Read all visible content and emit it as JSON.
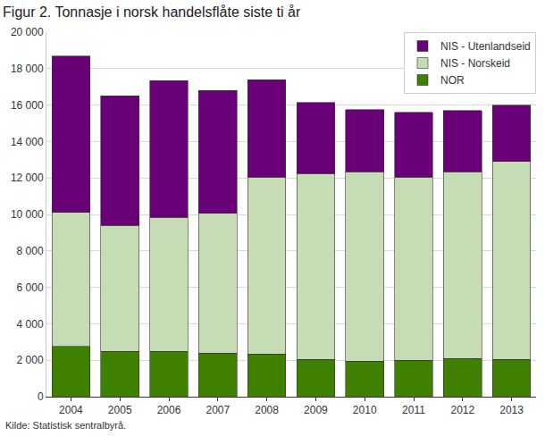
{
  "chart_data": {
    "type": "bar",
    "title": "Figur 2. Tonnasje i norsk handelsflåte siste ti år",
    "annotations": [
      "Kilde: Statistisk sentralbyrå."
    ],
    "categories": [
      "2004",
      "2005",
      "2006",
      "2007",
      "2008",
      "2009",
      "2010",
      "2011",
      "2012",
      "2013"
    ],
    "series": [
      {
        "name": "NOR",
        "color": "#3f8000",
        "values": [
          2750,
          2500,
          2500,
          2400,
          2350,
          2050,
          1950,
          2000,
          2100,
          2050
        ]
      },
      {
        "name": "NIS - Norskeid",
        "color": "#c6dcb4",
        "values": [
          7350,
          6900,
          7350,
          7650,
          9700,
          10200,
          10400,
          10050,
          10250,
          10850
        ]
      },
      {
        "name": "NIS - Utenlandseid",
        "color": "#6a0078",
        "values": [
          8600,
          7100,
          7500,
          6750,
          5350,
          3900,
          3400,
          3550,
          3350,
          3100
        ]
      }
    ],
    "stacked": true,
    "ylim": [
      0,
      20000
    ],
    "yticks": [
      0,
      {
        "value": 2000,
        "label": "2 000"
      },
      {
        "value": 4000,
        "label": "4 000"
      },
      {
        "value": 6000,
        "label": "6 000"
      },
      {
        "value": 8000,
        "label": "8 000"
      },
      {
        "value": 10000,
        "label": "10 000"
      },
      {
        "value": 12000,
        "label": "12 000"
      },
      {
        "value": 14000,
        "label": "14 000"
      },
      {
        "value": 16000,
        "label": "16 000"
      },
      {
        "value": 18000,
        "label": "18 000"
      },
      {
        "value": 20000,
        "label": "20 000"
      }
    ],
    "grid": true,
    "legend": "top-right"
  }
}
